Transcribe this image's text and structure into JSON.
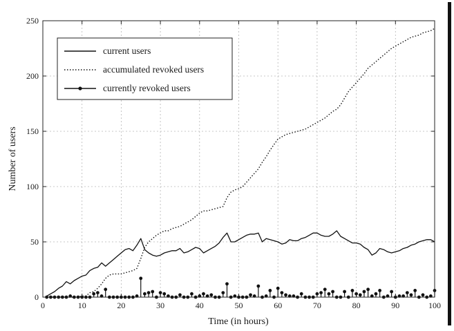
{
  "chart_data": {
    "type": "line",
    "title": "",
    "xlabel": "Time (in hours)",
    "ylabel": "Number of users",
    "xlim": [
      0,
      100
    ],
    "ylim": [
      0,
      250
    ],
    "xticks": [
      0,
      10,
      20,
      30,
      40,
      50,
      60,
      70,
      80,
      90,
      100
    ],
    "yticks": [
      0,
      50,
      100,
      150,
      200,
      250
    ],
    "grid": true,
    "legend_position": "top-left",
    "series": [
      {
        "name": "current users",
        "style": "solid",
        "x": [
          1,
          2,
          3,
          4,
          5,
          6,
          7,
          8,
          9,
          10,
          11,
          12,
          13,
          14,
          15,
          16,
          17,
          18,
          19,
          20,
          21,
          22,
          23,
          24,
          25,
          26,
          27,
          28,
          29,
          30,
          31,
          32,
          33,
          34,
          35,
          36,
          37,
          38,
          39,
          40,
          41,
          42,
          43,
          44,
          45,
          46,
          47,
          48,
          49,
          50,
          51,
          52,
          53,
          54,
          55,
          56,
          57,
          58,
          59,
          60,
          61,
          62,
          63,
          64,
          65,
          66,
          67,
          68,
          69,
          70,
          71,
          72,
          73,
          74,
          75,
          76,
          77,
          78,
          79,
          80,
          81,
          82,
          83,
          84,
          85,
          86,
          87,
          88,
          89,
          90,
          91,
          92,
          93,
          94,
          95,
          96,
          97,
          98,
          99,
          100
        ],
        "y": [
          1,
          3,
          5,
          8,
          10,
          14,
          12,
          15,
          17,
          19,
          20,
          24,
          26,
          27,
          31,
          28,
          31,
          34,
          37,
          40,
          43,
          44,
          42,
          47,
          53,
          43,
          40,
          38,
          37,
          38,
          40,
          41,
          42,
          42,
          44,
          40,
          41,
          43,
          45,
          44,
          40,
          42,
          44,
          46,
          49,
          54,
          58,
          50,
          50,
          52,
          54,
          56,
          57,
          57,
          58,
          50,
          53,
          52,
          51,
          50,
          48,
          49,
          52,
          51,
          51,
          53,
          54,
          56,
          58,
          58,
          56,
          55,
          55,
          57,
          60,
          55,
          53,
          51,
          49,
          49,
          48,
          45,
          43,
          38,
          40,
          44,
          43,
          41,
          40,
          41,
          42,
          44,
          45,
          47,
          48,
          50,
          51,
          52,
          52,
          50
        ]
      },
      {
        "name": "accumulated revoked users",
        "style": "dotted",
        "x": [
          1,
          2,
          3,
          4,
          5,
          6,
          7,
          8,
          9,
          10,
          11,
          12,
          13,
          14,
          15,
          16,
          17,
          18,
          19,
          20,
          21,
          22,
          23,
          24,
          25,
          26,
          27,
          28,
          29,
          30,
          31,
          32,
          33,
          34,
          35,
          36,
          37,
          38,
          39,
          40,
          41,
          42,
          43,
          44,
          45,
          46,
          47,
          48,
          49,
          50,
          51,
          52,
          53,
          54,
          55,
          56,
          57,
          58,
          59,
          60,
          61,
          62,
          63,
          64,
          65,
          66,
          67,
          68,
          69,
          70,
          71,
          72,
          73,
          74,
          75,
          76,
          77,
          78,
          79,
          80,
          81,
          82,
          83,
          84,
          85,
          86,
          87,
          88,
          89,
          90,
          91,
          92,
          93,
          94,
          95,
          96,
          97,
          98,
          99,
          100
        ],
        "y": [
          0,
          0,
          0,
          0,
          0,
          0,
          0,
          0,
          0,
          1,
          1,
          4,
          5,
          8,
          12,
          17,
          20,
          21,
          21,
          21,
          22,
          23,
          24,
          26,
          35,
          45,
          50,
          53,
          56,
          58,
          60,
          60,
          62,
          63,
          64,
          66,
          68,
          70,
          73,
          76,
          78,
          78,
          79,
          80,
          81,
          82,
          90,
          95,
          97,
          98,
          100,
          104,
          108,
          112,
          116,
          122,
          127,
          133,
          138,
          143,
          145,
          147,
          148,
          149,
          150,
          151,
          152,
          154,
          156,
          158,
          160,
          162,
          165,
          168,
          170,
          174,
          180,
          186,
          190,
          194,
          198,
          202,
          207,
          210,
          213,
          216,
          219,
          222,
          225,
          227,
          229,
          231,
          233,
          235,
          236,
          237,
          239,
          240,
          241,
          243
        ]
      },
      {
        "name": "currently revoked users",
        "style": "stem",
        "x": [
          1,
          2,
          3,
          4,
          5,
          6,
          7,
          8,
          9,
          10,
          11,
          12,
          13,
          14,
          15,
          16,
          17,
          18,
          19,
          20,
          21,
          22,
          23,
          24,
          25,
          26,
          27,
          28,
          29,
          30,
          31,
          32,
          33,
          34,
          35,
          36,
          37,
          38,
          39,
          40,
          41,
          42,
          43,
          44,
          45,
          46,
          47,
          48,
          49,
          50,
          51,
          52,
          53,
          54,
          55,
          56,
          57,
          58,
          59,
          60,
          61,
          62,
          63,
          64,
          65,
          66,
          67,
          68,
          69,
          70,
          71,
          72,
          73,
          74,
          75,
          76,
          77,
          78,
          79,
          80,
          81,
          82,
          83,
          84,
          85,
          86,
          87,
          88,
          89,
          90,
          91,
          92,
          93,
          94,
          95,
          96,
          97,
          98,
          99,
          100
        ],
        "y": [
          0,
          0,
          0,
          0,
          0,
          0,
          1,
          0,
          0,
          0,
          0,
          0,
          3,
          4,
          1,
          7,
          0,
          0,
          0,
          0,
          0,
          0,
          0,
          1,
          17,
          3,
          4,
          5,
          0,
          4,
          3,
          1,
          0,
          0,
          2,
          0,
          0,
          3,
          0,
          1,
          3,
          1,
          2,
          0,
          0,
          4,
          12,
          0,
          1,
          0,
          0,
          0,
          2,
          1,
          10,
          0,
          1,
          6,
          0,
          8,
          4,
          2,
          1,
          1,
          0,
          3,
          0,
          0,
          0,
          3,
          4,
          7,
          3,
          5,
          0,
          0,
          5,
          0,
          6,
          3,
          2,
          5,
          7,
          1,
          3,
          6,
          0,
          1,
          5,
          0,
          1,
          1,
          4,
          2,
          6,
          0,
          2,
          0,
          1,
          6
        ]
      }
    ],
    "colors": {
      "line": "#111111",
      "grid": "#b5b5b5",
      "axes": "#222222",
      "background": "#ffffff"
    }
  }
}
